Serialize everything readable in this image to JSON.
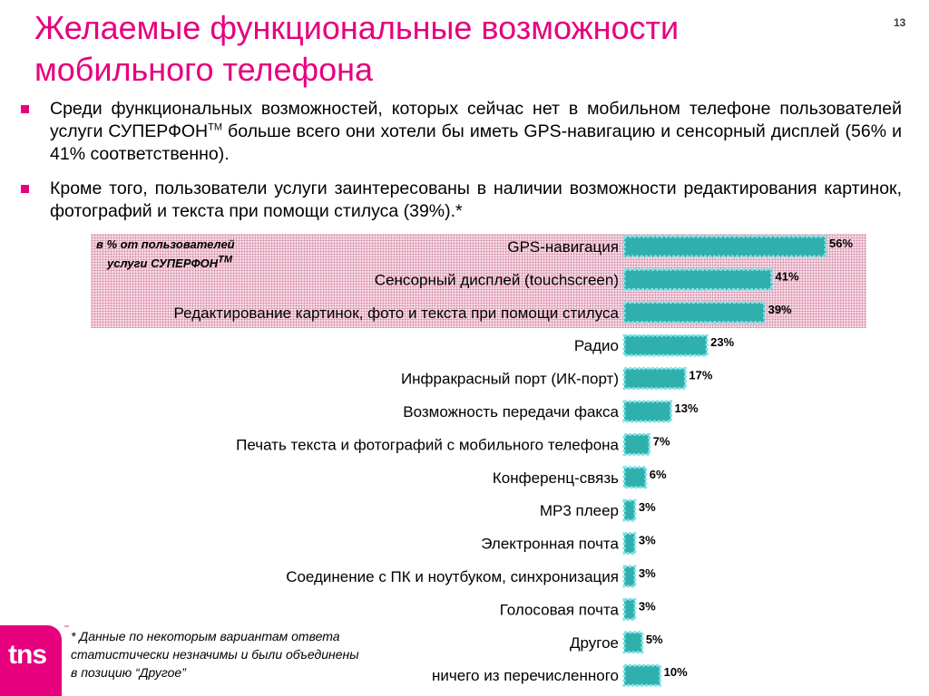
{
  "slide": {
    "title": "Желаемые функциональные возможности мобильного телефона",
    "page_number": "13",
    "bullets": [
      {
        "before": "Среди функциональных возможностей, которых сейчас нет в мобильном телефоне пользователей услуги СУПЕРФОН",
        "sup": "TM",
        "after": " больше всего они хотели бы иметь GPS-навигацию и сенсорный дисплей (56% и 41% соответственно)."
      },
      {
        "text": "Кроме того, пользователи услуги заинтересованы в наличии возможности редактирования картинок, фотографий и текста при помощи стилуса (39%).*"
      }
    ],
    "note": {
      "line1": "в % от пользователей",
      "line2": "услуги СУПЕРФОН",
      "sup": "TM"
    },
    "footnote": "*  Данные по некоторым вариантам ответа статистически незначимы и были объединены в позицию “Другое”",
    "logo": "tns",
    "logo_tm": "™"
  },
  "colors": {
    "accent": "#e6007e",
    "bar_fill": "#2fb0ad",
    "bar_border": "#7fe3e9",
    "highlight": "#f7dde6"
  },
  "chart_data": {
    "type": "bar",
    "orientation": "horizontal",
    "categories": [
      "GPS-навигация",
      "Сенсорный дисплей (touchscreen)",
      "Редактирование картинок, фото и текста при помощи стилуса",
      "Радио",
      "Инфракрасный порт (ИК-порт)",
      "Возможность передачи факса",
      "Печать текста и фотографий с мобильного телефона",
      "Конференц-связь",
      "MP3 плеер",
      "Электронная почта",
      "Соединение с ПК и ноутбуком, синхронизация",
      "Голосовая почта",
      "Другое",
      "ничего из перечисленного"
    ],
    "values": [
      56,
      41,
      39,
      23,
      17,
      13,
      7,
      6,
      3,
      3,
      3,
      3,
      5,
      10
    ],
    "value_labels": [
      "56%",
      "41%",
      "39%",
      "23%",
      "17%",
      "13%",
      "7%",
      "6%",
      "3%",
      "3%",
      "3%",
      "3%",
      "5%",
      "10%"
    ],
    "unit": "%",
    "highlighted": [
      0,
      1,
      2
    ],
    "grid": false,
    "legend": "none"
  }
}
